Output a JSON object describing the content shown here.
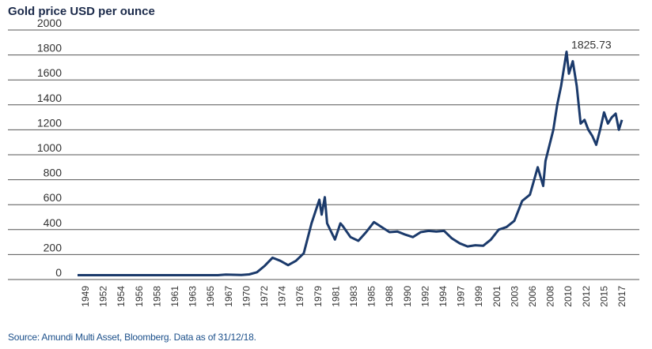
{
  "chart_data": {
    "type": "line",
    "title": "Gold price USD per ounce",
    "source": "Source: Amundi Multi Asset, Bloomberg. Data as of 31/12/18.",
    "ylim": [
      0,
      2000
    ],
    "yticks": [
      0,
      200,
      400,
      600,
      800,
      1000,
      1200,
      1400,
      1600,
      1800,
      2000
    ],
    "xlim": [
      1949,
      2019
    ],
    "xtick_labels": [
      "1949",
      "1952",
      "1954",
      "1956",
      "1958",
      "1961",
      "1963",
      "1965",
      "1967",
      "1970",
      "1972",
      "1974",
      "1976",
      "1979",
      "1981",
      "1983",
      "1985",
      "1988",
      "1990",
      "1992",
      "1994",
      "1997",
      "1999",
      "2001",
      "2003",
      "2006",
      "2008",
      "2010",
      "2012",
      "2015",
      "2017"
    ],
    "grid": true,
    "line_color": "#1b3a6b",
    "annotation": {
      "label": "1825.73",
      "x": 2011.7,
      "y": 1825.73
    },
    "series": [
      {
        "points": [
          [
            1949,
            35
          ],
          [
            1960,
            35
          ],
          [
            1967,
            35
          ],
          [
            1968,
            40
          ],
          [
            1969,
            38
          ],
          [
            1970,
            36
          ],
          [
            1971,
            41
          ],
          [
            1972,
            58
          ],
          [
            1973,
            110
          ],
          [
            1974,
            175
          ],
          [
            1975,
            150
          ],
          [
            1976,
            115
          ],
          [
            1977,
            150
          ],
          [
            1978,
            210
          ],
          [
            1979,
            450
          ],
          [
            1980,
            640
          ],
          [
            1980.3,
            520
          ],
          [
            1980.7,
            660
          ],
          [
            1981,
            450
          ],
          [
            1982,
            320
          ],
          [
            1982.7,
            450
          ],
          [
            1983,
            430
          ],
          [
            1984,
            340
          ],
          [
            1985,
            310
          ],
          [
            1986,
            380
          ],
          [
            1987,
            460
          ],
          [
            1988,
            420
          ],
          [
            1989,
            380
          ],
          [
            1990,
            385
          ],
          [
            1991,
            360
          ],
          [
            1992,
            340
          ],
          [
            1993,
            380
          ],
          [
            1994,
            390
          ],
          [
            1995,
            385
          ],
          [
            1996,
            390
          ],
          [
            1997,
            330
          ],
          [
            1998,
            290
          ],
          [
            1999,
            265
          ],
          [
            2000,
            275
          ],
          [
            2001,
            270
          ],
          [
            2002,
            320
          ],
          [
            2003,
            400
          ],
          [
            2004,
            420
          ],
          [
            2005,
            470
          ],
          [
            2006,
            630
          ],
          [
            2007,
            680
          ],
          [
            2008,
            900
          ],
          [
            2008.7,
            750
          ],
          [
            2009,
            950
          ],
          [
            2010,
            1200
          ],
          [
            2010.5,
            1400
          ],
          [
            2011,
            1550
          ],
          [
            2011.7,
            1825.73
          ],
          [
            2012,
            1650
          ],
          [
            2012.5,
            1750
          ],
          [
            2013,
            1550
          ],
          [
            2013.5,
            1250
          ],
          [
            2014,
            1280
          ],
          [
            2014.5,
            1200
          ],
          [
            2015,
            1150
          ],
          [
            2015.5,
            1080
          ],
          [
            2016,
            1200
          ],
          [
            2016.5,
            1340
          ],
          [
            2017,
            1250
          ],
          [
            2017.5,
            1300
          ],
          [
            2018,
            1330
          ],
          [
            2018.4,
            1200
          ],
          [
            2018.8,
            1280
          ]
        ]
      }
    ]
  }
}
